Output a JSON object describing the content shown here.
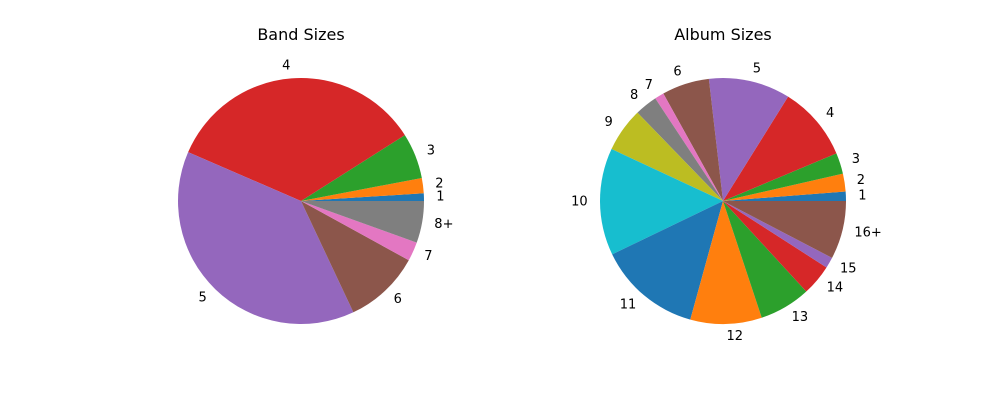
{
  "chart_data": [
    {
      "type": "pie",
      "title": "Band Sizes",
      "labels": [
        "1",
        "2",
        "3",
        "4",
        "5",
        "6",
        "7",
        "8+"
      ],
      "values": [
        1,
        2,
        6,
        34.5,
        38.5,
        10,
        2.5,
        5.5
      ],
      "colors": [
        "#1f77b4",
        "#ff7f0e",
        "#2ca02c",
        "#d62728",
        "#9467bd",
        "#8c564b",
        "#e377c2",
        "#7f7f7f"
      ]
    },
    {
      "type": "pie",
      "title": "Album Sizes",
      "labels": [
        "1",
        "2",
        "3",
        "4",
        "5",
        "6",
        "7",
        "8",
        "9",
        "10",
        "11",
        "12",
        "13",
        "14",
        "15",
        "16+"
      ],
      "values": [
        1.2,
        2.3,
        2.7,
        9.6,
        10.5,
        6.1,
        1.2,
        2.9,
        5.7,
        13.8,
        13.3,
        9.2,
        6.6,
        4.0,
        1.4,
        7.5
      ],
      "colors": [
        "#1f77b4",
        "#ff7f0e",
        "#2ca02c",
        "#d62728",
        "#9467bd",
        "#8c564b",
        "#e377c2",
        "#7f7f7f",
        "#bcbd22",
        "#17becf",
        "#1f77b4",
        "#ff7f0e",
        "#2ca02c",
        "#d62728",
        "#9467bd",
        "#8c564b"
      ]
    }
  ]
}
